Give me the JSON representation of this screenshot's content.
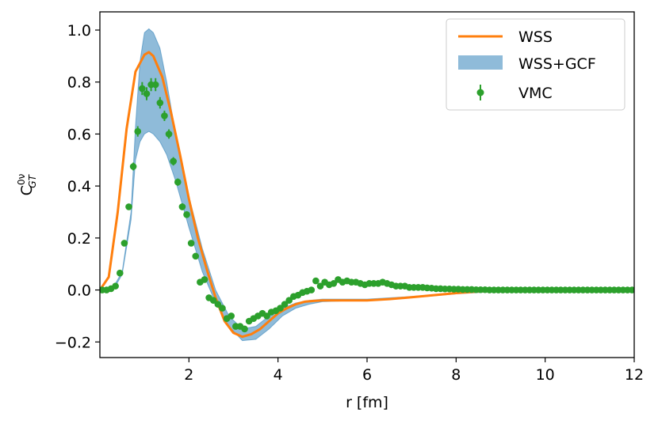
{
  "chart_data": {
    "type": "line",
    "xlabel": "r [fm]",
    "ylabel": {
      "base": "C",
      "sup": "0ν",
      "sub": "GT"
    },
    "xlim": [
      0,
      12
    ],
    "ylim": [
      -0.26,
      1.07
    ],
    "xticks": [
      2,
      4,
      6,
      8,
      10,
      12
    ],
    "xtick_labels": [
      "2",
      "4",
      "6",
      "8",
      "10",
      "12"
    ],
    "yticks": [
      -0.2,
      0.0,
      0.2,
      0.4,
      0.6,
      0.8,
      1.0
    ],
    "ytick_labels": [
      "−0.2",
      "0.0",
      "0.2",
      "0.4",
      "0.6",
      "0.8",
      "1.0"
    ],
    "legend": {
      "placement": "top-right",
      "entries": [
        {
          "label": "WSS",
          "kind": "line"
        },
        {
          "label": "WSS+GCF",
          "kind": "band"
        },
        {
          "label": "VMC",
          "kind": "errorbar"
        }
      ]
    },
    "colors": {
      "wss": "#ff7f0e",
      "band": "#1f77b4",
      "vmc": "#2ca02c"
    },
    "series": [
      {
        "name": "WSS",
        "x": [
          0,
          0.2,
          0.4,
          0.6,
          0.8,
          1.0,
          1.1,
          1.2,
          1.4,
          1.6,
          1.8,
          2.0,
          2.2,
          2.4,
          2.6,
          2.8,
          3.0,
          3.2,
          3.4,
          3.6,
          3.8,
          4.0,
          4.2,
          4.4,
          4.6,
          4.8,
          5.0,
          5.5,
          6.0,
          6.5,
          7.0,
          7.5,
          8.0,
          8.5,
          9.0,
          10.0,
          11.0,
          12.0
        ],
        "y": [
          0.0,
          0.05,
          0.3,
          0.62,
          0.84,
          0.905,
          0.915,
          0.9,
          0.82,
          0.68,
          0.52,
          0.35,
          0.2,
          0.08,
          -0.03,
          -0.12,
          -0.165,
          -0.18,
          -0.17,
          -0.15,
          -0.12,
          -0.09,
          -0.07,
          -0.055,
          -0.045,
          -0.042,
          -0.04,
          -0.04,
          -0.04,
          -0.035,
          -0.028,
          -0.02,
          -0.012,
          -0.006,
          -0.002,
          0.0,
          0.0,
          0.0
        ]
      },
      {
        "name": "WSS+GCF",
        "x": [
          0.0,
          0.3,
          0.5,
          0.7,
          0.8,
          0.9,
          1.0,
          1.1,
          1.2,
          1.35,
          1.5,
          1.7,
          2.0,
          2.3,
          2.6,
          2.9,
          3.2,
          3.5,
          3.8,
          4.1,
          4.4,
          4.7,
          5.0,
          5.5,
          6.0,
          7.0,
          8.0,
          9.0,
          10.0,
          11.0,
          12.0
        ],
        "upper": [
          0.0,
          0.01,
          0.07,
          0.3,
          0.63,
          0.88,
          0.99,
          1.005,
          0.99,
          0.93,
          0.8,
          0.6,
          0.36,
          0.16,
          0.0,
          -0.1,
          -0.15,
          -0.14,
          -0.1,
          -0.07,
          -0.05,
          -0.04,
          -0.035,
          -0.035,
          -0.035,
          -0.025,
          -0.012,
          -0.003,
          0.0,
          0.0,
          0.0
        ],
        "lower": [
          0.0,
          0.0,
          0.06,
          0.27,
          0.5,
          0.57,
          0.6,
          0.61,
          0.6,
          0.57,
          0.52,
          0.42,
          0.24,
          0.07,
          -0.05,
          -0.14,
          -0.195,
          -0.19,
          -0.15,
          -0.1,
          -0.07,
          -0.055,
          -0.045,
          -0.042,
          -0.04,
          -0.03,
          -0.015,
          -0.005,
          0.0,
          0.0,
          0.0
        ]
      },
      {
        "name": "VMC",
        "x": [
          0.05,
          0.15,
          0.25,
          0.35,
          0.45,
          0.55,
          0.65,
          0.75,
          0.85,
          0.95,
          1.05,
          1.15,
          1.25,
          1.35,
          1.45,
          1.55,
          1.65,
          1.75,
          1.85,
          1.95,
          2.05,
          2.15,
          2.25,
          2.35,
          2.45,
          2.55,
          2.65,
          2.75,
          2.85,
          2.95,
          3.05,
          3.15,
          3.25,
          3.35,
          3.45,
          3.55,
          3.65,
          3.75,
          3.85,
          3.95,
          4.05,
          4.15,
          4.25,
          4.35,
          4.45,
          4.55,
          4.65,
          4.75,
          4.85,
          4.95,
          5.05,
          5.15,
          5.25,
          5.35,
          5.45,
          5.55,
          5.65,
          5.75,
          5.85,
          5.95,
          6.05,
          6.15,
          6.25,
          6.35,
          6.45,
          6.55,
          6.65,
          6.75,
          6.85,
          6.95,
          7.05,
          7.15,
          7.25,
          7.35,
          7.45,
          7.55,
          7.65,
          7.75,
          7.85,
          7.95,
          8.05,
          8.15,
          8.25,
          8.35,
          8.45,
          8.55,
          8.65,
          8.75,
          8.85,
          8.95,
          9.05,
          9.15,
          9.25,
          9.35,
          9.45,
          9.55,
          9.65,
          9.75,
          9.85,
          9.95,
          10.05,
          10.15,
          10.25,
          10.35,
          10.45,
          10.55,
          10.65,
          10.75,
          10.85,
          10.95,
          11.05,
          11.15,
          11.25,
          11.35,
          11.45,
          11.55,
          11.65,
          11.75,
          11.85,
          11.95
        ],
        "y": [
          0.0,
          0.0,
          0.005,
          0.015,
          0.065,
          0.18,
          0.32,
          0.475,
          0.61,
          0.775,
          0.755,
          0.79,
          0.79,
          0.72,
          0.67,
          0.6,
          0.495,
          0.415,
          0.32,
          0.29,
          0.18,
          0.13,
          0.03,
          0.04,
          -0.03,
          -0.04,
          -0.055,
          -0.07,
          -0.11,
          -0.1,
          -0.14,
          -0.14,
          -0.15,
          -0.12,
          -0.11,
          -0.1,
          -0.09,
          -0.1,
          -0.085,
          -0.08,
          -0.07,
          -0.055,
          -0.04,
          -0.025,
          -0.02,
          -0.01,
          -0.005,
          0.0,
          0.035,
          0.015,
          0.03,
          0.02,
          0.025,
          0.04,
          0.03,
          0.035,
          0.03,
          0.03,
          0.025,
          0.02,
          0.025,
          0.025,
          0.025,
          0.03,
          0.025,
          0.02,
          0.015,
          0.015,
          0.015,
          0.01,
          0.01,
          0.01,
          0.01,
          0.008,
          0.007,
          0.005,
          0.005,
          0.004,
          0.004,
          0.003,
          0.003,
          0.002,
          0.002,
          0.002,
          0.001,
          0.001,
          0.001,
          0.0,
          0.0,
          0.0,
          0.0,
          0.0,
          0.0,
          0.0,
          0.0,
          0.0,
          0.0,
          0.0,
          0.0,
          0.0,
          0.0,
          0.0,
          0.0,
          0.0,
          0.0,
          0.0,
          0.0,
          0.0,
          0.0,
          0.0,
          0.0,
          0.0,
          0.0,
          0.0,
          0.0,
          0.0,
          0.0,
          0.0,
          0.0,
          0.0
        ],
        "err": [
          0.005,
          0.005,
          0.005,
          0.006,
          0.008,
          0.01,
          0.012,
          0.015,
          0.02,
          0.025,
          0.025,
          0.025,
          0.025,
          0.022,
          0.02,
          0.018,
          0.016,
          0.014,
          0.013,
          0.012,
          0.01,
          0.01,
          0.01,
          0.01,
          0.009,
          0.009,
          0.009,
          0.008,
          0.008,
          0.008,
          0.008,
          0.008,
          0.008,
          0.008,
          0.007,
          0.007,
          0.007,
          0.007,
          0.007,
          0.006,
          0.006,
          0.006,
          0.006,
          0.006,
          0.006,
          0.005,
          0.005,
          0.005,
          0.005,
          0.005,
          0.005,
          0.005,
          0.005,
          0.005,
          0.005,
          0.005,
          0.005,
          0.005,
          0.005,
          0.005,
          0.004,
          0.004,
          0.004,
          0.004,
          0.004,
          0.004,
          0.004,
          0.004,
          0.004,
          0.004,
          0.003,
          0.003,
          0.003,
          0.003,
          0.003,
          0.003,
          0.003,
          0.003,
          0.003,
          0.003,
          0.002,
          0.002,
          0.002,
          0.002,
          0.002,
          0.002,
          0.002,
          0.002,
          0.002,
          0.002,
          0.002,
          0.002,
          0.002,
          0.002,
          0.002,
          0.002,
          0.002,
          0.002,
          0.002,
          0.002,
          0.002,
          0.002,
          0.002,
          0.002,
          0.002,
          0.002,
          0.002,
          0.002,
          0.002,
          0.002,
          0.002,
          0.002,
          0.002,
          0.002,
          0.002,
          0.002,
          0.002,
          0.002,
          0.002,
          0.002
        ]
      }
    ]
  }
}
